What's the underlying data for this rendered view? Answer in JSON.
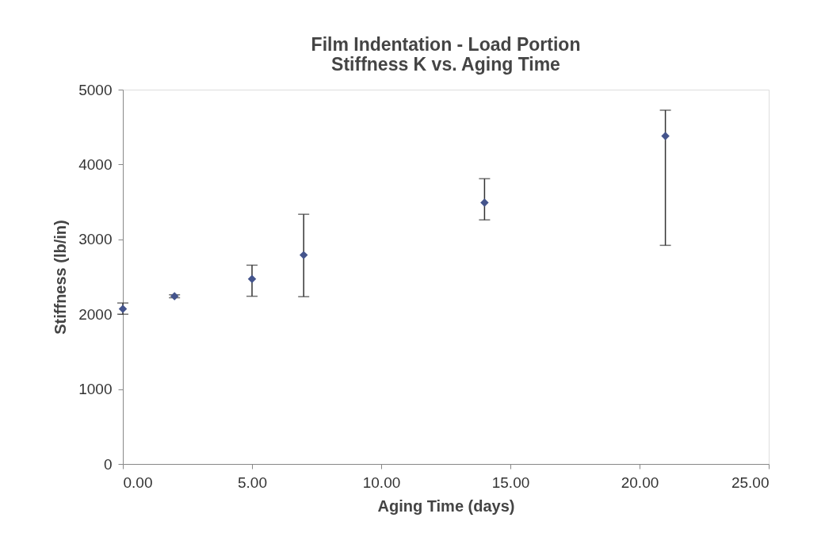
{
  "chart_data": {
    "type": "scatter",
    "title": [
      "Film Indentation - Load Portion",
      "Stiffness K vs. Aging Time"
    ],
    "xlabel": "Aging Time (days)",
    "ylabel": "Stiffness (lb/in)",
    "x": [
      0,
      2,
      5,
      7,
      14,
      21
    ],
    "series": [
      {
        "color": "#44548c",
        "values": [
          2070,
          2240,
          2470,
          2790,
          3490,
          4380
        ],
        "errors": [
          [
            2000,
            2150
          ],
          [
            2220,
            2260
          ],
          [
            2240,
            2655
          ],
          [
            2235,
            3335
          ],
          [
            3260,
            3810
          ],
          [
            2920,
            4725
          ]
        ]
      }
    ],
    "xlim": [
      0,
      25
    ],
    "xticks": [
      {
        "value": 0,
        "label": "0.00"
      },
      {
        "value": 5,
        "label": "5.00"
      },
      {
        "value": 10,
        "label": "10.00"
      },
      {
        "value": 15,
        "label": "15.00"
      },
      {
        "value": 20,
        "label": "20.00"
      },
      {
        "value": 25,
        "label": "25.00"
      }
    ],
    "ylim": [
      0,
      5000
    ],
    "yticks": [
      0,
      1000,
      2000,
      3000,
      4000,
      5000
    ],
    "marker": "diamond",
    "grid": false
  }
}
